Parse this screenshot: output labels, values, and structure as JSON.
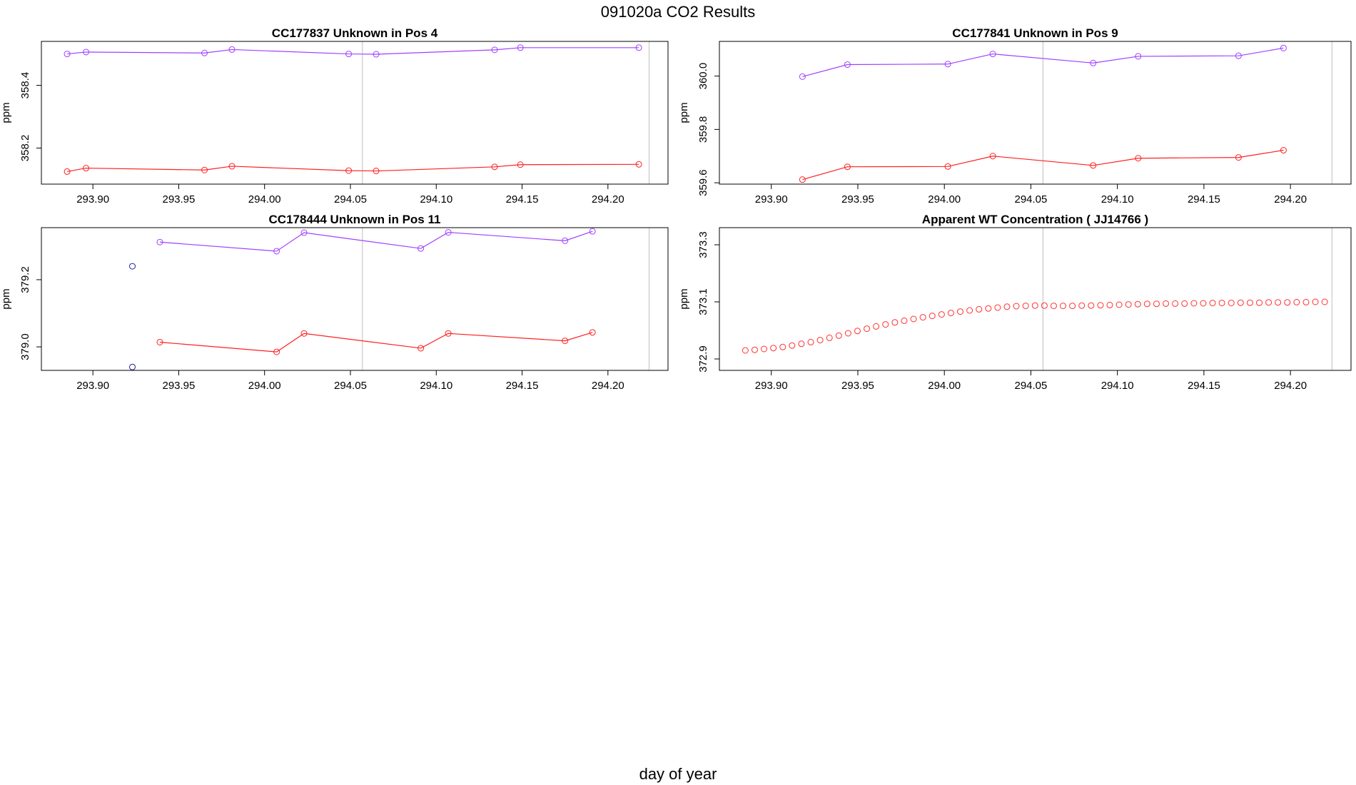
{
  "figure": {
    "title": "091020a  CO2 Results",
    "xlabel": "day of year"
  },
  "colors": {
    "purple": "#a040ff",
    "red": "#ff2020",
    "blue": "#2020a0",
    "marker_red": "#ff3030",
    "refline": "#c8c8c8",
    "axis": "#000000"
  },
  "chart_data": [
    {
      "type": "line",
      "title": "CC177837    Unknown in Pos 4",
      "xlabel": "",
      "ylabel": "ppm",
      "xlim": [
        293.87,
        294.235
      ],
      "ylim": [
        358.085,
        358.54
      ],
      "xticks": [
        "293.90",
        "293.95",
        "294.00",
        "294.05",
        "294.10",
        "294.15",
        "294.20"
      ],
      "yticks": [
        "358.2",
        "358.4"
      ],
      "vlines": [
        294.057,
        294.224
      ],
      "series": [
        {
          "color": "purple",
          "x": [
            293.885,
            293.896,
            293.965,
            293.981,
            294.049,
            294.065,
            294.134,
            294.149,
            294.218
          ],
          "y": [
            358.5,
            358.506,
            358.503,
            358.514,
            358.5,
            358.499,
            358.513,
            358.52,
            358.52
          ]
        },
        {
          "color": "red",
          "x": [
            293.885,
            293.896,
            293.965,
            293.981,
            294.049,
            294.065,
            294.134,
            294.149,
            294.218
          ],
          "y": [
            358.125,
            358.136,
            358.13,
            358.142,
            358.128,
            358.127,
            358.14,
            358.147,
            358.148
          ]
        }
      ]
    },
    {
      "type": "line",
      "title": "CC177841    Unknown in Pos 9",
      "xlabel": "",
      "ylabel": "ppm",
      "xlim": [
        293.87,
        294.235
      ],
      "ylim": [
        359.595,
        360.13
      ],
      "xticks": [
        "293.90",
        "293.95",
        "294.00",
        "294.05",
        "294.10",
        "294.15",
        "294.20"
      ],
      "yticks": [
        "359.6",
        "359.8",
        "360.0"
      ],
      "vlines": [
        294.057,
        294.224
      ],
      "series": [
        {
          "color": "purple",
          "x": [
            293.918,
            293.944,
            294.002,
            294.028,
            294.086,
            294.112,
            294.17,
            294.196
          ],
          "y": [
            359.998,
            360.043,
            360.045,
            360.083,
            360.049,
            360.074,
            360.076,
            360.105
          ]
        },
        {
          "color": "red",
          "x": [
            293.918,
            293.944,
            294.002,
            294.028,
            294.086,
            294.112,
            294.17,
            294.196
          ],
          "y": [
            359.612,
            359.66,
            359.661,
            359.7,
            359.665,
            359.692,
            359.695,
            359.722
          ]
        }
      ]
    },
    {
      "type": "line",
      "title": "CC178444    Unknown in Pos 11",
      "xlabel": "",
      "ylabel": "ppm",
      "xlim": [
        293.87,
        294.235
      ],
      "ylim": [
        378.93,
        379.355
      ],
      "xticks": [
        "293.90",
        "293.95",
        "294.00",
        "294.05",
        "294.10",
        "294.15",
        "294.20"
      ],
      "yticks": [
        "379.0",
        "379.2"
      ],
      "vlines": [
        294.057,
        294.224
      ],
      "series": [
        {
          "color": "purple",
          "x": [
            293.939,
            294.007,
            294.023,
            294.091,
            294.107,
            294.175,
            294.191
          ],
          "y": [
            379.312,
            379.285,
            379.34,
            379.293,
            379.341,
            379.316,
            379.344
          ]
        },
        {
          "color": "red",
          "x": [
            293.939,
            294.007,
            294.023,
            294.091,
            294.107,
            294.175,
            294.191
          ],
          "y": [
            379.014,
            378.985,
            379.04,
            378.996,
            379.04,
            379.018,
            379.043
          ]
        },
        {
          "color": "blue",
          "style": "points",
          "x": [
            293.923,
            293.923
          ],
          "y": [
            379.24,
            378.94
          ]
        }
      ]
    },
    {
      "type": "scatter",
      "title": "Apparent WT Concentration ( JJ14766 )",
      "xlabel": "",
      "ylabel": "ppm",
      "xlim": [
        293.87,
        294.235
      ],
      "ylim": [
        372.86,
        373.36
      ],
      "xticks": [
        "293.90",
        "293.95",
        "294.00",
        "294.05",
        "294.10",
        "294.15",
        "294.20"
      ],
      "yticks": [
        "372.9",
        "373.1",
        "373.3"
      ],
      "vlines": [
        294.057,
        294.224
      ],
      "series": [
        {
          "color": "marker_red",
          "x": [
            293.885,
            293.8904,
            293.8958,
            293.9012,
            293.9066,
            293.912,
            293.9174,
            293.9228,
            293.9282,
            293.9336,
            293.939,
            293.9444,
            293.9498,
            293.9552,
            293.9606,
            293.966,
            293.9714,
            293.9768,
            293.9822,
            293.9876,
            293.993,
            293.9984,
            294.0038,
            294.0092,
            294.0146,
            294.02,
            294.0254,
            294.0308,
            294.0362,
            294.0416,
            294.047,
            294.0524,
            294.0578,
            294.0632,
            294.0686,
            294.074,
            294.0794,
            294.0848,
            294.0902,
            294.0956,
            294.101,
            294.1064,
            294.1118,
            294.1172,
            294.1226,
            294.128,
            294.1334,
            294.1388,
            294.1442,
            294.1496,
            294.155,
            294.1604,
            294.1658,
            294.1712,
            294.1766,
            294.182,
            294.1874,
            294.1928,
            294.1982,
            294.2036,
            294.209,
            294.2144,
            294.2198
          ],
          "y": [
            372.93,
            372.932,
            372.935,
            372.938,
            372.942,
            372.947,
            372.953,
            372.959,
            372.966,
            372.974,
            372.982,
            372.99,
            372.998,
            373.006,
            373.014,
            373.021,
            373.028,
            373.034,
            373.04,
            373.046,
            373.051,
            373.056,
            373.061,
            373.066,
            373.07,
            373.074,
            373.077,
            373.08,
            373.083,
            373.085,
            373.086,
            373.087,
            373.087,
            373.086,
            373.086,
            373.086,
            373.087,
            373.087,
            373.088,
            373.089,
            373.09,
            373.091,
            373.092,
            373.093,
            373.093,
            373.094,
            373.094,
            373.094,
            373.095,
            373.095,
            373.096,
            373.096,
            373.096,
            373.097,
            373.097,
            373.097,
            373.098,
            373.098,
            373.098,
            373.099,
            373.099,
            373.1,
            373.1
          ]
        }
      ]
    }
  ]
}
